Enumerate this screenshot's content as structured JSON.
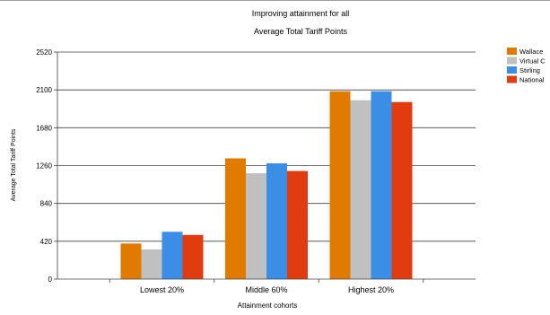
{
  "chart_data": {
    "type": "bar",
    "title": "Improving attainment for all",
    "subtitle": "Average Total Tariff Points",
    "xlabel": "Attainment cohorts",
    "ylabel": "Average Total Tariff Points",
    "ylim": [
      0,
      2520
    ],
    "yticks": [
      0,
      420,
      840,
      1260,
      1680,
      2100,
      2520
    ],
    "grid": true,
    "legend_position": "right",
    "categories": [
      "Lowest 20%",
      "Middle 60%",
      "Highest 20%"
    ],
    "series": [
      {
        "name": "Wallace",
        "color": "#e07b00",
        "values": [
          395,
          1340,
          2085
        ]
      },
      {
        "name": "Virtual C",
        "color": "#c0c0c0",
        "values": [
          330,
          1175,
          1985
        ]
      },
      {
        "name": "Stirling",
        "color": "#3a8ee6",
        "values": [
          525,
          1285,
          2085
        ]
      },
      {
        "name": "National",
        "color": "#e03c10",
        "values": [
          490,
          1200,
          1965
        ]
      }
    ]
  }
}
